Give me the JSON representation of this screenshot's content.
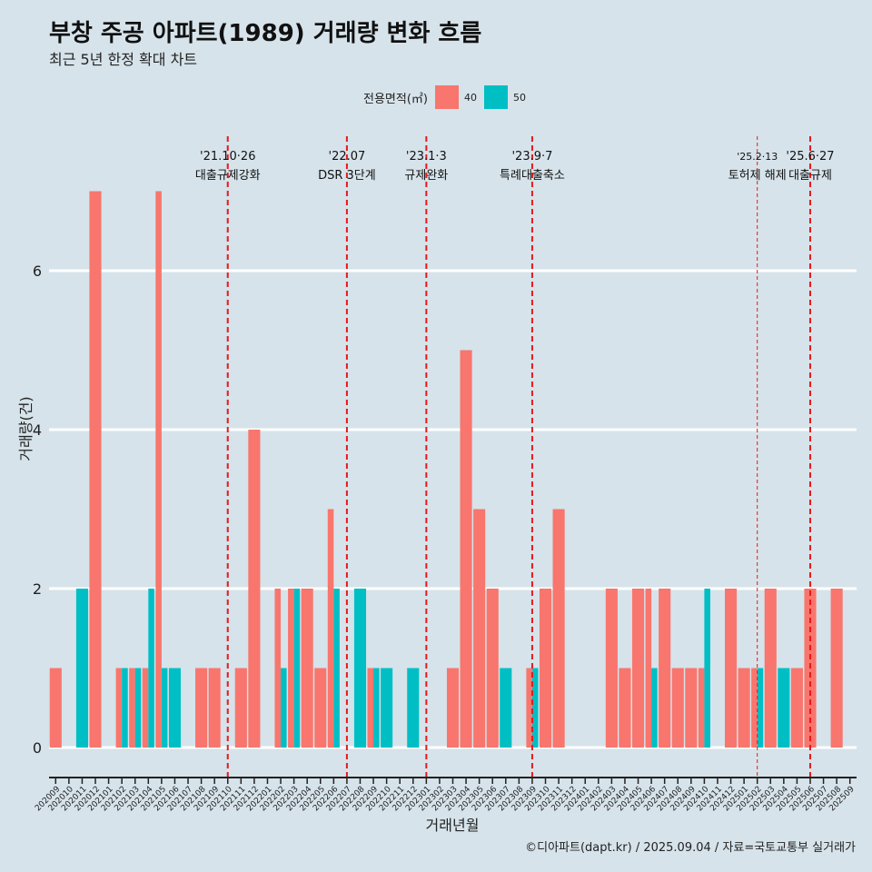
{
  "title": "부창 주공 아파트(1989) 거래량 변화 흐름",
  "subtitle": "최근 5년 한정 확대 차트",
  "caption": "©디아파트(dapt.kr) / 2025.09.04 / 자료=국토교통부 실거래가",
  "legend": {
    "title": "전용면적(㎡)",
    "items": [
      {
        "label": "40",
        "color": "#f8766d"
      },
      {
        "label": "50",
        "color": "#00bfc4"
      }
    ]
  },
  "chart_data": {
    "type": "bar",
    "title": "부창 주공 아파트(1989) 거래량 변화 흐름",
    "xlabel": "거래년월",
    "ylabel": "거래량(건)",
    "ylim": [
      0,
      7
    ],
    "yticks": [
      0,
      2,
      4,
      6
    ],
    "grid": true,
    "legend_position": "top",
    "categories": [
      "202009",
      "202010",
      "202011",
      "202012",
      "202101",
      "202102",
      "202103",
      "202104",
      "202105",
      "202106",
      "202107",
      "202108",
      "202109",
      "202110",
      "202111",
      "202112",
      "202201",
      "202202",
      "202203",
      "202204",
      "202205",
      "202206",
      "202207",
      "202208",
      "202209",
      "202210",
      "202211",
      "202212",
      "202301",
      "202302",
      "202303",
      "202304",
      "202305",
      "202306",
      "202307",
      "202308",
      "202309",
      "202310",
      "202311",
      "202312",
      "202401",
      "202402",
      "202403",
      "202404",
      "202405",
      "202406",
      "202407",
      "202408",
      "202409",
      "202410",
      "202411",
      "202412",
      "202501",
      "202502",
      "202503",
      "202504",
      "202505",
      "202506",
      "202507",
      "202508",
      "202509"
    ],
    "series": [
      {
        "name": "40",
        "color": "#f8766d",
        "values": [
          1,
          0,
          0,
          7,
          0,
          1,
          1,
          1,
          7,
          0,
          0,
          1,
          1,
          0,
          1,
          4,
          0,
          2,
          2,
          2,
          1,
          3,
          0,
          0,
          1,
          0,
          0,
          0,
          0,
          0,
          1,
          5,
          3,
          2,
          0,
          0,
          1,
          2,
          3,
          0,
          0,
          0,
          2,
          1,
          2,
          2,
          2,
          1,
          1,
          1,
          0,
          2,
          1,
          1,
          2,
          0,
          1,
          2,
          0,
          2,
          0
        ]
      },
      {
        "name": "50",
        "color": "#00bfc4",
        "values": [
          0,
          0,
          2,
          0,
          0,
          1,
          1,
          2,
          1,
          1,
          0,
          0,
          0,
          0,
          0,
          0,
          0,
          1,
          2,
          0,
          0,
          2,
          0,
          2,
          1,
          1,
          0,
          1,
          0,
          0,
          0,
          0,
          0,
          0,
          1,
          0,
          1,
          0,
          0,
          0,
          0,
          0,
          0,
          0,
          0,
          1,
          0,
          0,
          0,
          2,
          0,
          0,
          0,
          1,
          0,
          1,
          0,
          0,
          0,
          0,
          0
        ]
      }
    ],
    "annotations": [
      {
        "x": "202110",
        "date": "'21.10·26",
        "label": "대출규제강화",
        "style": "dashed"
      },
      {
        "x": "202207",
        "date": "'22.07",
        "label": "DSR 3단계",
        "style": "dashed"
      },
      {
        "x": "202301",
        "date": "'23.1·3",
        "label": "규제완화",
        "style": "dashed"
      },
      {
        "x": "202309",
        "date": "'23.9·7",
        "label": "특례대출축소",
        "style": "dashed"
      },
      {
        "x": "202502",
        "date": "'25.2·13",
        "label": "토허제 해제",
        "style": "thin"
      },
      {
        "x": "202506",
        "date": "'25.6·27",
        "label": "대출규제",
        "style": "dashed"
      }
    ]
  }
}
